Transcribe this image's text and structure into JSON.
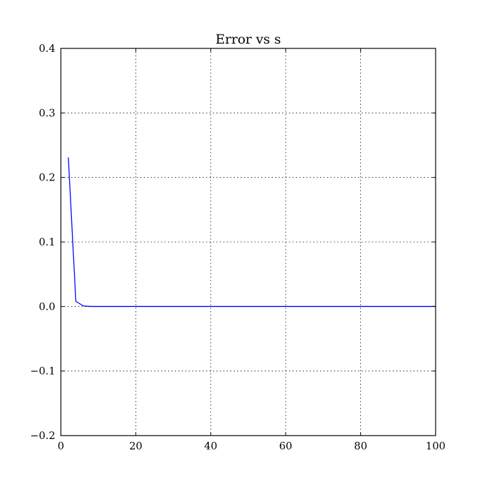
{
  "chart_data": {
    "type": "line",
    "title": "Error vs s",
    "xlabel": "",
    "ylabel": "",
    "xlim": [
      0,
      100
    ],
    "ylim": [
      -0.2,
      0.4
    ],
    "x_ticks": [
      0,
      20,
      40,
      60,
      80,
      100
    ],
    "x_tick_labels": [
      "0",
      "20",
      "40",
      "60",
      "80",
      "100"
    ],
    "y_ticks": [
      -0.2,
      -0.1,
      0.0,
      0.1,
      0.2,
      0.3,
      0.4
    ],
    "y_tick_labels": [
      "−0.2",
      "−0.1",
      "0.0",
      "0.1",
      "0.2",
      "0.3",
      "0.4"
    ],
    "grid": true,
    "series": [
      {
        "color": "#0000ff",
        "x": [
          2,
          4,
          6,
          8,
          10,
          20,
          40,
          60,
          80,
          100
        ],
        "y": [
          0.231,
          0.008,
          0.001,
          0.0,
          0.0,
          0.0,
          0.0,
          0.0,
          0.0,
          0.0
        ]
      }
    ]
  }
}
